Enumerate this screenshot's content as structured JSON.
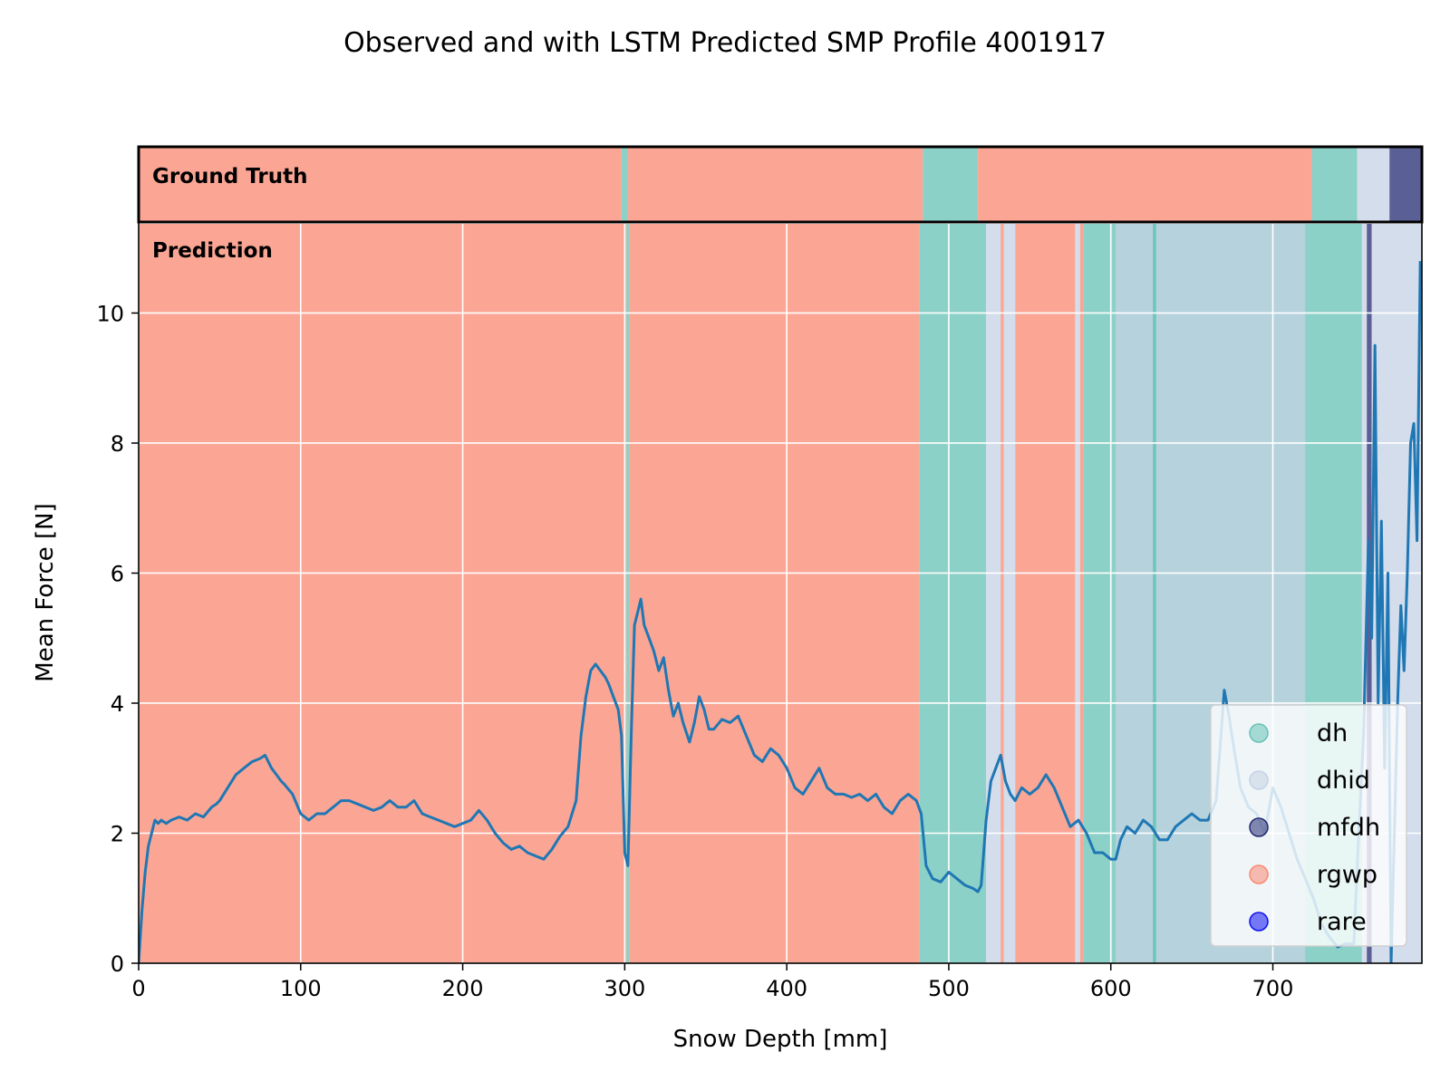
{
  "chart_data": {
    "type": "line",
    "title": "Observed and with LSTM Predicted SMP Profile 4001917",
    "xlabel": "Snow Depth [mm]",
    "ylabel": "Mean Force [N]",
    "xlim": [
      0,
      792
    ],
    "ylim": [
      0,
      11.4
    ],
    "x_ticks": [
      0,
      100,
      200,
      300,
      400,
      500,
      600,
      700
    ],
    "y_ticks": [
      0,
      2,
      4,
      6,
      8,
      10
    ],
    "grid": true,
    "legend_position": "lower-right",
    "strip_labels": {
      "ground_truth": "Ground Truth",
      "prediction": "Prediction"
    },
    "classes": [
      {
        "name": "dh",
        "color": "#66c2b4"
      },
      {
        "name": "dhid",
        "color": "#c4d2e4"
      },
      {
        "name": "mfdh",
        "color": "#232b72"
      },
      {
        "name": "rgwp",
        "color": "#fa8872"
      },
      {
        "name": "rare",
        "color": "#1010f0"
      }
    ],
    "ground_truth_segments": [
      {
        "start": 0,
        "end": 298,
        "class": "rgwp"
      },
      {
        "start": 298,
        "end": 302,
        "class": "dh"
      },
      {
        "start": 302,
        "end": 484,
        "class": "rgwp"
      },
      {
        "start": 484,
        "end": 518,
        "class": "dh"
      },
      {
        "start": 518,
        "end": 724,
        "class": "rgwp"
      },
      {
        "start": 724,
        "end": 752,
        "class": "dh"
      },
      {
        "start": 752,
        "end": 772,
        "class": "dhid"
      },
      {
        "start": 772,
        "end": 792,
        "class": "mfdh"
      }
    ],
    "prediction_segments": [
      {
        "start": 0,
        "end": 301,
        "class": "rgwp"
      },
      {
        "start": 301,
        "end": 303,
        "class": "dh"
      },
      {
        "start": 303,
        "end": 482,
        "class": "rgwp"
      },
      {
        "start": 482,
        "end": 523,
        "class": "dh"
      },
      {
        "start": 523,
        "end": 532,
        "class": "dhid"
      },
      {
        "start": 532,
        "end": 534,
        "class": "rgwp"
      },
      {
        "start": 534,
        "end": 541,
        "class": "dhid"
      },
      {
        "start": 541,
        "end": 578,
        "class": "rgwp"
      },
      {
        "start": 578,
        "end": 581,
        "class": "dhid"
      },
      {
        "start": 581,
        "end": 583,
        "class": "rgwp"
      },
      {
        "start": 583,
        "end": 720,
        "class": "dh"
      },
      {
        "start": 603,
        "end": 626,
        "class": "dhid"
      },
      {
        "start": 626,
        "end": 628,
        "class": "dh"
      },
      {
        "start": 628,
        "end": 720,
        "class": "dhid"
      },
      {
        "start": 720,
        "end": 755,
        "class": "dh"
      },
      {
        "start": 755,
        "end": 758,
        "class": "dhid"
      },
      {
        "start": 758,
        "end": 761,
        "class": "mfdh"
      },
      {
        "start": 761,
        "end": 792,
        "class": "dhid"
      }
    ],
    "series": [
      {
        "color": "#1f77b4",
        "x": [
          0,
          2,
          4,
          6,
          8,
          10,
          12,
          14,
          17,
          20,
          25,
          30,
          35,
          40,
          45,
          48,
          50,
          55,
          60,
          65,
          70,
          75,
          78,
          82,
          85,
          88,
          90,
          95,
          100,
          105,
          110,
          115,
          120,
          125,
          130,
          135,
          140,
          145,
          150,
          155,
          160,
          165,
          170,
          175,
          180,
          185,
          190,
          195,
          200,
          205,
          210,
          215,
          220,
          225,
          230,
          235,
          240,
          245,
          250,
          255,
          260,
          265,
          270,
          273,
          276,
          279,
          282,
          285,
          288,
          290,
          293,
          296,
          298,
          300,
          302,
          304,
          306,
          308,
          310,
          312,
          315,
          318,
          321,
          324,
          327,
          330,
          333,
          336,
          340,
          343,
          346,
          349,
          352,
          355,
          360,
          365,
          370,
          375,
          380,
          385,
          390,
          395,
          400,
          405,
          410,
          415,
          420,
          425,
          430,
          435,
          440,
          445,
          450,
          455,
          460,
          465,
          470,
          475,
          480,
          483,
          486,
          490,
          495,
          500,
          505,
          510,
          515,
          518,
          520,
          523,
          526,
          529,
          532,
          535,
          538,
          541,
          545,
          550,
          555,
          560,
          565,
          570,
          575,
          580,
          585,
          590,
          595,
          600,
          603,
          606,
          610,
          615,
          620,
          625,
          630,
          635,
          640,
          645,
          650,
          655,
          660,
          665,
          668,
          670,
          673,
          676,
          680,
          685,
          690,
          695,
          700,
          705,
          710,
          715,
          720,
          725,
          730,
          735,
          740,
          745,
          750,
          753,
          756,
          759,
          761,
          763,
          765,
          767,
          769,
          771,
          773,
          775,
          777,
          779,
          781,
          783,
          785,
          787,
          789,
          791
        ],
        "y": [
          0.0,
          0.8,
          1.4,
          1.8,
          2.0,
          2.2,
          2.15,
          2.2,
          2.15,
          2.2,
          2.25,
          2.2,
          2.3,
          2.25,
          2.4,
          2.45,
          2.5,
          2.7,
          2.9,
          3.0,
          3.1,
          3.15,
          3.2,
          3.0,
          2.9,
          2.8,
          2.75,
          2.6,
          2.3,
          2.2,
          2.3,
          2.3,
          2.4,
          2.5,
          2.5,
          2.45,
          2.4,
          2.35,
          2.4,
          2.5,
          2.4,
          2.4,
          2.5,
          2.3,
          2.25,
          2.2,
          2.15,
          2.1,
          2.15,
          2.2,
          2.35,
          2.2,
          2.0,
          1.85,
          1.75,
          1.8,
          1.7,
          1.65,
          1.6,
          1.75,
          1.95,
          2.1,
          2.5,
          3.5,
          4.1,
          4.5,
          4.6,
          4.5,
          4.4,
          4.3,
          4.1,
          3.9,
          3.5,
          1.7,
          1.5,
          3.5,
          5.2,
          5.4,
          5.6,
          5.2,
          5.0,
          4.8,
          4.5,
          4.7,
          4.2,
          3.8,
          4.0,
          3.7,
          3.4,
          3.7,
          4.1,
          3.9,
          3.6,
          3.6,
          3.75,
          3.7,
          3.8,
          3.5,
          3.2,
          3.1,
          3.3,
          3.2,
          3.0,
          2.7,
          2.6,
          2.8,
          3.0,
          2.7,
          2.6,
          2.6,
          2.55,
          2.6,
          2.5,
          2.6,
          2.4,
          2.3,
          2.5,
          2.6,
          2.5,
          2.3,
          1.5,
          1.3,
          1.25,
          1.4,
          1.3,
          1.2,
          1.15,
          1.1,
          1.2,
          2.2,
          2.8,
          3.0,
          3.2,
          2.8,
          2.6,
          2.5,
          2.7,
          2.6,
          2.7,
          2.9,
          2.7,
          2.4,
          2.1,
          2.2,
          2.0,
          1.7,
          1.7,
          1.6,
          1.6,
          1.9,
          2.1,
          2.0,
          2.2,
          2.1,
          1.9,
          1.9,
          2.1,
          2.2,
          2.3,
          2.2,
          2.2,
          2.5,
          3.5,
          4.2,
          3.8,
          3.3,
          2.7,
          2.4,
          2.3,
          2.0,
          2.7,
          2.4,
          2.0,
          1.6,
          1.3,
          1.0,
          0.6,
          0.4,
          0.25,
          0.3,
          0.3,
          2.0,
          3.5,
          6.5,
          5.0,
          9.5,
          4.0,
          6.8,
          3.0,
          6.0,
          0.0,
          2.0,
          4.0,
          5.5,
          4.5,
          6.0,
          8.0,
          8.3,
          6.5,
          10.8
        ]
      }
    ]
  }
}
